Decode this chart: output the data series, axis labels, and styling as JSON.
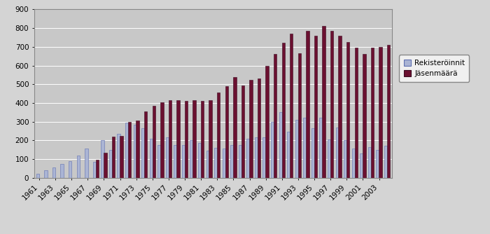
{
  "years": [
    1961,
    1962,
    1963,
    1964,
    1965,
    1966,
    1967,
    1968,
    1969,
    1970,
    1971,
    1972,
    1973,
    1974,
    1975,
    1976,
    1977,
    1978,
    1979,
    1980,
    1981,
    1982,
    1983,
    1984,
    1985,
    1986,
    1987,
    1988,
    1989,
    1990,
    1991,
    1992,
    1993,
    1994,
    1995,
    1996,
    1997,
    1998,
    1999,
    2000,
    2001,
    2002,
    2003,
    2004
  ],
  "rekisteroinnit": [
    20,
    42,
    55,
    75,
    90,
    120,
    155,
    85,
    200,
    150,
    235,
    295,
    285,
    265,
    210,
    175,
    215,
    175,
    175,
    200,
    185,
    145,
    160,
    155,
    175,
    175,
    210,
    215,
    215,
    300,
    350,
    245,
    310,
    320,
    265,
    320,
    205,
    270,
    200,
    155,
    130,
    165,
    150,
    170
  ],
  "jasemaara": [
    0,
    0,
    0,
    0,
    0,
    0,
    0,
    95,
    135,
    220,
    225,
    300,
    305,
    355,
    385,
    405,
    415,
    415,
    410,
    415,
    410,
    415,
    455,
    490,
    540,
    495,
    525,
    530,
    600,
    660,
    720,
    770,
    665,
    785,
    760,
    810,
    785,
    760,
    725,
    695,
    660,
    695,
    700,
    710
  ],
  "bar_color_reg": "#aab4d4",
  "bar_color_jas": "#6b1030",
  "fig_bg_color": "#d4d4d4",
  "plot_bg_color": "#c8c8c8",
  "ylim": [
    0,
    900
  ],
  "yticks": [
    0,
    100,
    200,
    300,
    400,
    500,
    600,
    700,
    800,
    900
  ],
  "xlabel_ticks": [
    1961,
    1963,
    1965,
    1967,
    1969,
    1971,
    1973,
    1975,
    1977,
    1979,
    1981,
    1983,
    1985,
    1987,
    1989,
    1991,
    1993,
    1995,
    1997,
    1999,
    2001,
    2003
  ],
  "legend_reg": "Rekisteröinnit",
  "legend_jas": "Jäsenmäärä"
}
